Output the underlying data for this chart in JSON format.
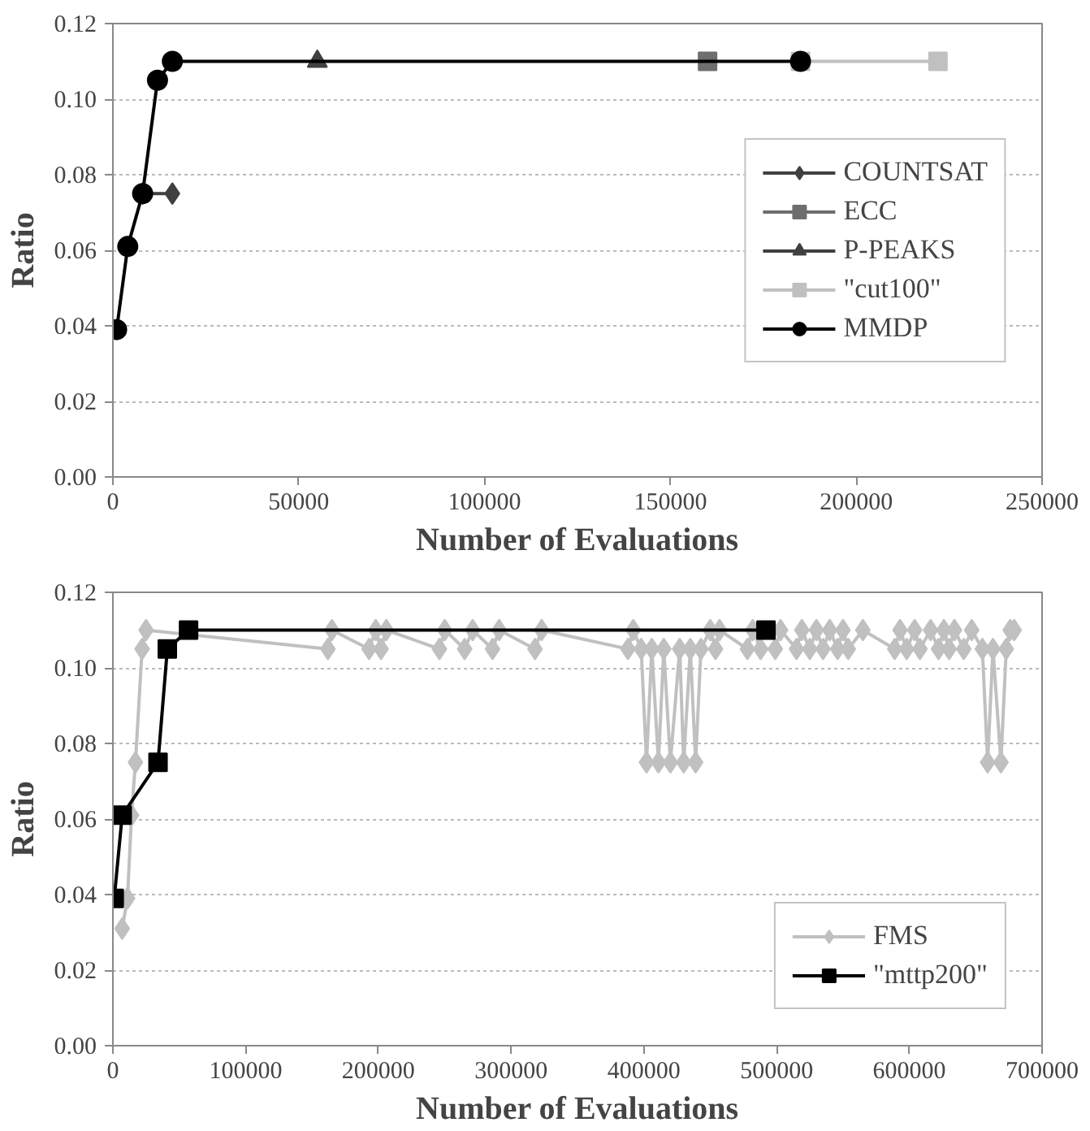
{
  "chart_data": [
    {
      "type": "line",
      "xlabel": "Number of Evaluations",
      "ylabel": "Ratio",
      "xlim": [
        0,
        250000
      ],
      "xticks": [
        0,
        50000,
        100000,
        150000,
        200000,
        250000
      ],
      "ylim": [
        0,
        0.12
      ],
      "yticks": [
        {
          "value": 0,
          "label": "0.00"
        },
        {
          "value": 0.02,
          "label": "0.02"
        },
        {
          "value": 0.04,
          "label": "0.04"
        },
        {
          "value": 0.06,
          "label": "0.06"
        },
        {
          "value": 0.08,
          "label": "0.08"
        },
        {
          "value": 0.1,
          "label": "0.10"
        },
        {
          "value": 0.12,
          "label": "0.12"
        }
      ],
      "grid": "y",
      "legend": "right",
      "series": [
        {
          "name": "COUNTSAT",
          "color": "#404040",
          "marker": "diamond",
          "x": [
            8000,
            16000
          ],
          "values": [
            0.075,
            0.075
          ]
        },
        {
          "name": "ECC",
          "color": "#6e6e6e",
          "marker": "square",
          "x": [
            160000
          ],
          "values": [
            0.11
          ]
        },
        {
          "name": "P-PEAKS",
          "color": "#404040",
          "marker": "triangle",
          "x": [
            55000
          ],
          "values": [
            0.11
          ]
        },
        {
          "name": "\"cut100\"",
          "color": "#c0c0c0",
          "marker": "square",
          "x": [
            185000,
            222000
          ],
          "values": [
            0.11,
            0.11
          ]
        },
        {
          "name": "MMDP",
          "color": "#000000",
          "marker": "circle",
          "x": [
            1000,
            4000,
            8000,
            12000,
            16000,
            185000
          ],
          "values": [
            0.039,
            0.061,
            0.075,
            0.105,
            0.11,
            0.11
          ]
        }
      ]
    },
    {
      "type": "line",
      "xlabel": "Number of Evaluations",
      "ylabel": "Ratio",
      "xlim": [
        0,
        700000
      ],
      "xticks": [
        0,
        100000,
        200000,
        300000,
        400000,
        500000,
        600000,
        700000
      ],
      "ylim": [
        0,
        0.12
      ],
      "yticks": [
        {
          "value": 0,
          "label": "0.00"
        },
        {
          "value": 0.02,
          "label": "0.02"
        },
        {
          "value": 0.04,
          "label": "0.04"
        },
        {
          "value": 0.06,
          "label": "0.06"
        },
        {
          "value": 0.08,
          "label": "0.08"
        },
        {
          "value": 0.1,
          "label": "0.10"
        },
        {
          "value": 0.12,
          "label": "0.12"
        }
      ],
      "grid": "y",
      "legend": "bottom right",
      "series": [
        {
          "name": "FMS",
          "color": "#c0c0c0",
          "marker": "diamond",
          "x": [
            7000,
            11000,
            14000,
            17000,
            22000,
            25000,
            162000,
            165000,
            193000,
            198000,
            202000,
            206000,
            246000,
            250000,
            265000,
            271000,
            286000,
            291000,
            318000,
            323000,
            388000,
            392000,
            398000,
            402000,
            406000,
            411000,
            415000,
            420000,
            427000,
            430000,
            435000,
            439000,
            443000,
            450000,
            454000,
            457000,
            478000,
            482000,
            488000,
            499000,
            503000,
            515000,
            519000,
            525000,
            530000,
            535000,
            540000,
            546000,
            550000,
            554000,
            565000,
            589000,
            593000,
            598000,
            604000,
            608000,
            616000,
            622000,
            626000,
            630000,
            634000,
            641000,
            647000,
            655000,
            659000,
            663000,
            669000,
            673000,
            676000,
            679000
          ],
          "values": [
            0.031,
            0.039,
            0.061,
            0.075,
            0.105,
            0.11,
            0.105,
            0.11,
            0.105,
            0.11,
            0.105,
            0.11,
            0.105,
            0.11,
            0.105,
            0.11,
            0.105,
            0.11,
            0.105,
            0.11,
            0.105,
            0.11,
            0.105,
            0.075,
            0.105,
            0.075,
            0.105,
            0.075,
            0.105,
            0.075,
            0.105,
            0.075,
            0.105,
            0.11,
            0.105,
            0.11,
            0.105,
            0.11,
            0.105,
            0.105,
            0.11,
            0.105,
            0.11,
            0.105,
            0.11,
            0.105,
            0.11,
            0.105,
            0.11,
            0.105,
            0.11,
            0.105,
            0.11,
            0.105,
            0.11,
            0.105,
            0.11,
            0.105,
            0.11,
            0.105,
            0.11,
            0.105,
            0.11,
            0.105,
            0.075,
            0.105,
            0.075,
            0.105,
            0.11,
            0.11
          ]
        },
        {
          "name": "\"mttp200\"",
          "color": "#000000",
          "marker": "square",
          "x": [
            1000,
            7000,
            34000,
            41000,
            57000,
            492000
          ],
          "values": [
            0.039,
            0.061,
            0.075,
            0.105,
            0.11,
            0.11
          ]
        }
      ]
    }
  ]
}
